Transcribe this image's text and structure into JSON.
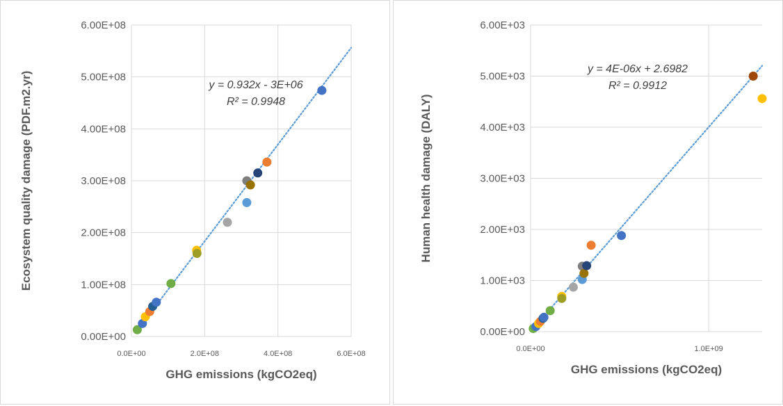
{
  "chart_data": [
    {
      "type": "scatter",
      "xlabel": "GHG emissions (kgCO2eq)",
      "ylabel": "Ecosystem quality damage (PDF.m2.yr)",
      "xlim": [
        0,
        600000000
      ],
      "ylim": [
        0,
        600000000
      ],
      "x_ticks": [
        "0.0E+00",
        "2.0E+08",
        "4.0E+08",
        "6.0E+08"
      ],
      "x_tick_values": [
        0,
        200000000,
        400000000,
        600000000
      ],
      "y_ticks": [
        "0.00E+00",
        "1.00E+08",
        "2.00E+08",
        "3.00E+08",
        "4.00E+08",
        "5.00E+08",
        "6.00E+08"
      ],
      "y_tick_values": [
        0,
        100000000,
        200000000,
        300000000,
        400000000,
        500000000,
        600000000
      ],
      "trendline": {
        "slope": 0.932,
        "intercept": -3000000,
        "equation": "y = 0.932x - 3E+06",
        "r2": "R² = 0.9948"
      },
      "points": [
        {
          "x": 16000000,
          "y": 13000000,
          "color": "#70ad47"
        },
        {
          "x": 30000000,
          "y": 25000000,
          "color": "#4472c4"
        },
        {
          "x": 38000000,
          "y": 38000000,
          "color": "#ffc000"
        },
        {
          "x": 50000000,
          "y": 48000000,
          "color": "#ed7d31"
        },
        {
          "x": 58000000,
          "y": 58000000,
          "color": "#255e91"
        },
        {
          "x": 68000000,
          "y": 66000000,
          "color": "#4472c4"
        },
        {
          "x": 108000000,
          "y": 102000000,
          "color": "#70ad47"
        },
        {
          "x": 178000000,
          "y": 166000000,
          "color": "#ffc000"
        },
        {
          "x": 179000000,
          "y": 160000000,
          "color": "#9e9e27"
        },
        {
          "x": 262000000,
          "y": 220000000,
          "color": "#a5a5a5"
        },
        {
          "x": 315000000,
          "y": 258000000,
          "color": "#5b9bd5"
        },
        {
          "x": 315000000,
          "y": 300000000,
          "color": "#7f7f7f"
        },
        {
          "x": 325000000,
          "y": 292000000,
          "color": "#997300"
        },
        {
          "x": 345000000,
          "y": 315000000,
          "color": "#264478"
        },
        {
          "x": 370000000,
          "y": 336000000,
          "color": "#ed7d31"
        },
        {
          "x": 520000000,
          "y": 474000000,
          "color": "#4472c4"
        }
      ]
    },
    {
      "type": "scatter",
      "xlabel": "GHG emissions (kgCO2eq)",
      "ylabel": "Human health damage (DALY)",
      "xlim": [
        0,
        1300000000
      ],
      "ylim": [
        0,
        6000
      ],
      "x_ticks": [
        "0.0E+00",
        "1.0E+09"
      ],
      "x_tick_values": [
        0,
        1000000000
      ],
      "y_ticks": [
        "0.00E+00",
        "1.00E+03",
        "2.00E+03",
        "3.00E+03",
        "4.00E+03",
        "5.00E+03",
        "6.00E+03"
      ],
      "y_tick_values": [
        0,
        1000,
        2000,
        3000,
        4000,
        5000,
        6000
      ],
      "trendline": {
        "slope": 4e-06,
        "intercept": 2.6982,
        "equation": "y = 4E-06x + 2.6982",
        "r2": "R² = 0.9912"
      },
      "points": [
        {
          "x": 15000000,
          "y": 60,
          "color": "#70ad47"
        },
        {
          "x": 30000000,
          "y": 100,
          "color": "#4472c4"
        },
        {
          "x": 45000000,
          "y": 160,
          "color": "#ffc000"
        },
        {
          "x": 55000000,
          "y": 200,
          "color": "#ed7d31"
        },
        {
          "x": 70000000,
          "y": 260,
          "color": "#255e91"
        },
        {
          "x": 75000000,
          "y": 280,
          "color": "#4472c4"
        },
        {
          "x": 110000000,
          "y": 410,
          "color": "#70ad47"
        },
        {
          "x": 175000000,
          "y": 690,
          "color": "#ffc000"
        },
        {
          "x": 175000000,
          "y": 650,
          "color": "#9e9e27"
        },
        {
          "x": 240000000,
          "y": 870,
          "color": "#a5a5a5"
        },
        {
          "x": 290000000,
          "y": 1020,
          "color": "#5b9bd5"
        },
        {
          "x": 290000000,
          "y": 1280,
          "color": "#7f7f7f"
        },
        {
          "x": 300000000,
          "y": 1140,
          "color": "#997300"
        },
        {
          "x": 315000000,
          "y": 1290,
          "color": "#264478"
        },
        {
          "x": 340000000,
          "y": 1690,
          "color": "#ed7d31"
        },
        {
          "x": 510000000,
          "y": 1880,
          "color": "#4472c4"
        },
        {
          "x": 1250000000,
          "y": 5000,
          "color": "#9e480e"
        },
        {
          "x": 1300000000,
          "y": 4560,
          "color": "#ffc000"
        }
      ]
    }
  ]
}
